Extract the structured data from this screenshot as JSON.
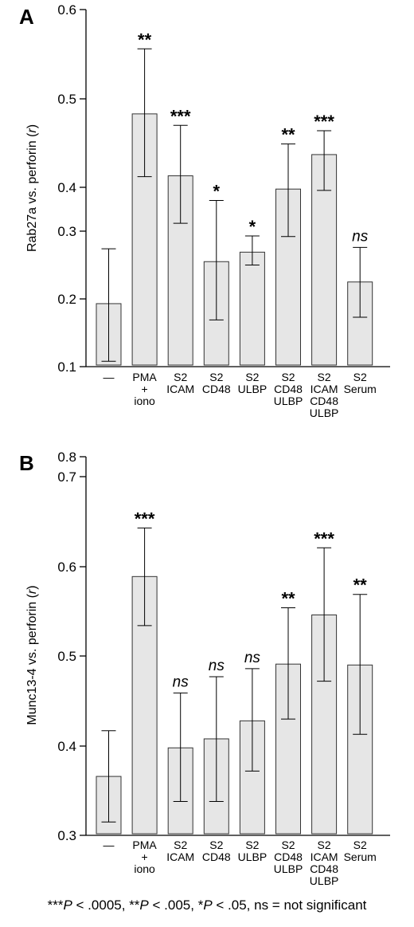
{
  "chart_data": [
    {
      "type": "bar",
      "panel_label": "A",
      "ylabel_prefix": "Rab27a vs. perforin (",
      "ylabel_var": "r",
      "ylabel_suffix": ")",
      "yticks": [
        0.1,
        0.2,
        0.3,
        0.4,
        0.5,
        0.6
      ],
      "categories": [
        [
          "—"
        ],
        [
          "PMA",
          "+",
          "iono"
        ],
        [
          "S2",
          "ICAM"
        ],
        [
          "S2",
          "CD48"
        ],
        [
          "S2",
          "ULBP"
        ],
        [
          "S2",
          "CD48",
          "ULBP"
        ],
        [
          "S2",
          "ICAM",
          "CD48",
          "ULBP"
        ],
        [
          "S2",
          "Serum"
        ]
      ],
      "values": [
        0.193,
        0.483,
        0.413,
        0.255,
        0.269,
        0.396,
        0.437,
        0.225
      ],
      "err_low": [
        0.108,
        0.412,
        0.318,
        0.169,
        0.25,
        0.292,
        0.393,
        0.173
      ],
      "err_high": [
        0.274,
        0.556,
        0.47,
        0.37,
        0.293,
        0.449,
        0.464,
        0.276
      ],
      "significance": [
        "",
        "**",
        "***",
        "*",
        "*",
        "**",
        "***",
        "ns"
      ]
    },
    {
      "type": "bar",
      "panel_label": "B",
      "ylabel_prefix": "Munc13-4 vs. perforin (",
      "ylabel_var": "r",
      "ylabel_suffix": ")",
      "yticks": [
        0.3,
        0.4,
        0.5,
        0.6,
        0.7,
        0.8
      ],
      "categories": [
        [
          "—"
        ],
        [
          "PMA",
          "+",
          "iono"
        ],
        [
          "S2",
          "ICAM"
        ],
        [
          "S2",
          "CD48"
        ],
        [
          "S2",
          "ULBP"
        ],
        [
          "S2",
          "CD48",
          "ULBP"
        ],
        [
          "S2",
          "ICAM",
          "CD48",
          "ULBP"
        ],
        [
          "S2",
          "Serum"
        ]
      ],
      "values": [
        0.366,
        0.589,
        0.398,
        0.408,
        0.428,
        0.491,
        0.546,
        0.49
      ],
      "err_low": [
        0.315,
        0.534,
        0.338,
        0.338,
        0.372,
        0.43,
        0.472,
        0.413
      ],
      "err_high": [
        0.417,
        0.643,
        0.459,
        0.477,
        0.486,
        0.554,
        0.621,
        0.569
      ],
      "significance": [
        "",
        "***",
        "ns",
        "ns",
        "ns",
        "**",
        "***",
        "**"
      ]
    }
  ],
  "footnote": {
    "p1": "***",
    "p1v": " < .0005, ",
    "p2": "**",
    "p2v": " < .005, ",
    "p3": "*",
    "p3v": " < .05, ns = not significant",
    "p_letter": "P"
  },
  "colors": {
    "bar_fill": "#e6e6e6",
    "bar_stroke": "#333333",
    "axis": "#000000"
  }
}
